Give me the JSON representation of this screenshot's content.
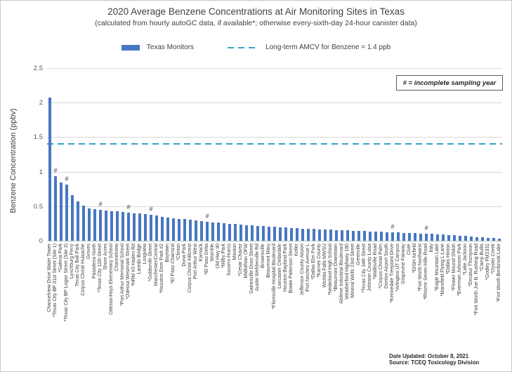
{
  "footer": {
    "date_updated": "Date Updated: October 8, 2021",
    "source": "Source: TCEQ Toxicology Division"
  },
  "chart_data": {
    "type": "bar",
    "title": "2020 Average Benzene Concentrations at Air Monitoring Sites in Texas",
    "subtitle": "(calculated from hourly autoGC data, if available*; otherwise every-sixth-day 24-hour canister data)",
    "ylabel": "Benzene Concentration (ppbv)",
    "ylim": [
      0,
      2.5
    ],
    "ytick_labels": [
      "0",
      "0.5",
      "1",
      "1.5",
      "2",
      "2.5"
    ],
    "grid": "horizontal",
    "legend_position": "top",
    "legend": [
      {
        "label": "Texas Monitors",
        "type": "bar",
        "color": "#4777C0"
      },
      {
        "label": "Long-term AMCV for Benzene = 1.4 ppb",
        "type": "dashed-line",
        "color": "#31A3C9"
      }
    ],
    "reference_line": {
      "label": "Long-term AMCV for Benzene = 1.4 ppb",
      "value": 1.4
    },
    "note": "# = incomplete sampling year",
    "incomplete_marker": "#",
    "incomplete_indices": [
      1,
      3,
      9,
      14,
      18,
      28,
      61,
      67
    ],
    "categories": [
      "Channelview Drive Water Tower",
      "*Texas City BP 31st Street (Site 1)",
      "*Galena Park",
      "*Texas City BP Logan Street (Site 3)",
      "Lynchburg Ferry",
      "Texas City Ball Park",
      "Corpus Christi Huisache",
      "Groves",
      "Pasadena North",
      "*Texas City 11th Street",
      "Shore Acres",
      "Odessa-Hays Elementary School",
      "Channelview",
      "*Port Arthur Memorial School",
      "*Odessa Westmark Street",
      "*HRM #3 Haden Rd",
      "Laredo Bridge",
      "Longview",
      "*Goldsmith Street",
      "Manchester/Central",
      "*Houston Deer Park #2",
      "Baytown",
      "*El Paso Chamizal",
      "*Clinton",
      "Dona Park",
      "Corpus Christi Hillcrest",
      "Port Arthur West",
      "Karnack",
      "*El Paso Delta",
      "Womble",
      "Old Hwy 90",
      "*Milby Park",
      "Socorro Hueco",
      "Mission",
      "*Cesar Chavez",
      "Midlothian OFW",
      "Gainesville Doss Street",
      "Austin Webberville Rd",
      "Brownsville",
      "Beaumont Mary",
      "*Floresville Hospital Boulevard",
      "Lancaster Cedardale",
      "Houston Bayland Park",
      "Bowie Patterson Street",
      "Keller",
      "Jefferson County Airport",
      "Port Neches Avenue L",
      "*Dallas Elm Fork",
      "*Karnes County",
      "Wichita Falls MWSU",
      "*Nederland High School",
      "*Beaumont Downtown",
      "Abilene Industrial Boulevard",
      "Weatherford Highway 180",
      "Mineral Wells 23rd Street",
      "Greenville",
      "*Texas City 34th Street",
      "Johnson County Luisa",
      "*Wallisville Road",
      "*Corpus Christi Palm",
      "Denton Airport South",
      "*Kennedale Treepoint Drive",
      "*Arlington UT Campus",
      "Grapevine Fairway",
      "Clute",
      "*DISH Airfield",
      "*Fort Worth Northwest",
      "*Rhome Seven Hills Road",
      "Italy",
      "*Eagle Mountain Lake",
      "*Mansfield Flying L Lane",
      "*Dallas Hinton",
      "*Flower Mound Shiloh",
      "*Everman Johnson Park",
      "*Lake Jackson",
      "*Decatur Thompson",
      "*Fort Worth Joe B. Rushing Road",
      "*Camp Bullis",
      "*Godley FM2331",
      "*Oyster Creek",
      "*Fort Worth Benbrook Lake"
    ],
    "values": [
      2.07,
      0.94,
      0.84,
      0.81,
      0.66,
      0.57,
      0.51,
      0.47,
      0.46,
      0.45,
      0.44,
      0.43,
      0.43,
      0.42,
      0.41,
      0.4,
      0.4,
      0.39,
      0.38,
      0.37,
      0.35,
      0.34,
      0.33,
      0.32,
      0.31,
      0.3,
      0.29,
      0.28,
      0.27,
      0.26,
      0.26,
      0.25,
      0.24,
      0.24,
      0.23,
      0.22,
      0.22,
      0.21,
      0.21,
      0.2,
      0.2,
      0.19,
      0.19,
      0.18,
      0.18,
      0.17,
      0.17,
      0.17,
      0.16,
      0.16,
      0.16,
      0.15,
      0.15,
      0.15,
      0.14,
      0.14,
      0.14,
      0.13,
      0.13,
      0.13,
      0.12,
      0.12,
      0.12,
      0.11,
      0.11,
      0.11,
      0.1,
      0.1,
      0.1,
      0.09,
      0.09,
      0.08,
      0.08,
      0.07,
      0.07,
      0.06,
      0.05,
      0.05,
      0.04,
      0.04,
      0.03
    ]
  }
}
